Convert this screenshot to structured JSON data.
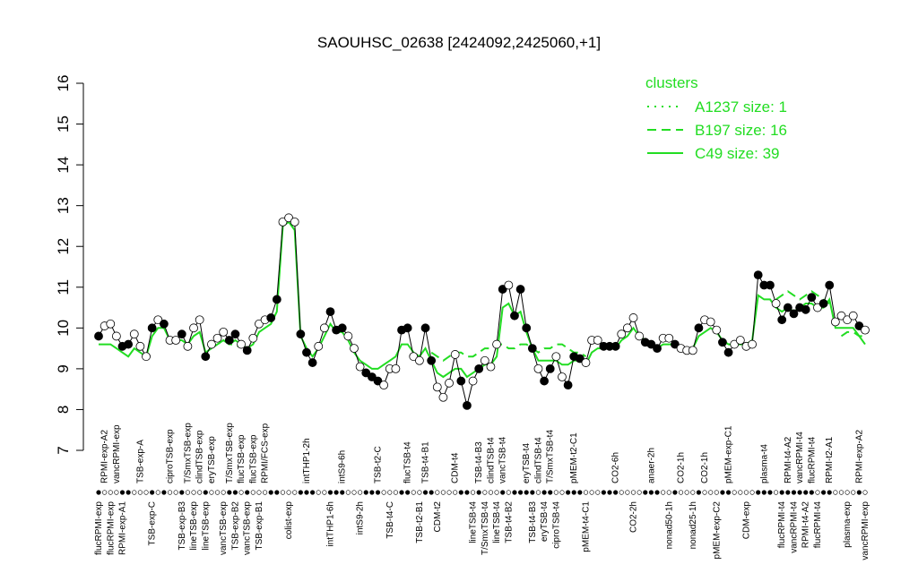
{
  "chart_data": {
    "type": "line",
    "title": "SAOUHSC_02638 [2424092,2425060,+1]",
    "categories": [
      "flucRPMI-exp",
      "RPMI-exp-A2",
      "flucRPMI-exp",
      "vancRPMI-exp",
      "RPMI-exp-A1",
      null,
      null,
      "TSB-exp-A",
      null,
      "TSB-exp-C",
      null,
      null,
      "ciproTSB-exp",
      null,
      "TSB-exp-B3",
      "T/SmxTSB-exp",
      "lineTSB-exp",
      "clindTSB-exp",
      "lineTSB-exp",
      "eryTSB-exp",
      null,
      "vancTSB-exp",
      "T/SmxTSB-exp",
      "TSB-exp-B2",
      "flucTSB-exp",
      "vancTSB-exp",
      "flucTSB-exp",
      "TSB-exp-B1",
      "RPMI/FCS-exp",
      null,
      null,
      null,
      "colist-exp",
      null,
      null,
      "intTHP1-2h",
      null,
      null,
      null,
      "intTHP1-6h",
      null,
      "intS9-6h",
      null,
      null,
      "intS9-2h",
      null,
      null,
      "TSB-t2-C",
      null,
      "TSB-t4-C",
      null,
      null,
      "flucTSB-t4",
      null,
      "TSB-t2-B1",
      "TSB-t4-B1",
      null,
      "CDM-t2",
      null,
      null,
      "CDM-t4",
      null,
      null,
      "lineTSB-t4",
      "TSB-t4-B3",
      "T/SmxTSB-t4",
      "clindTSB-t4",
      "lineTSB-t4",
      "vancTSB-t4",
      "TSB-t4-B2",
      null,
      null,
      "eryTSB-t4",
      "TSB-t4-B3",
      "clindTSB-t4",
      "eryTSB-t4",
      "T/SmxTSB-t4",
      "ciproTSB-t4",
      null,
      null,
      "pMEM-t2-C1",
      null,
      "pMEM-t4-C1",
      null,
      null,
      null,
      null,
      "CO2-6h",
      null,
      null,
      "CO2-2h",
      null,
      null,
      "anaer-2h",
      null,
      null,
      "nonad50-1h",
      null,
      "CO2-1h",
      null,
      "nonad25-1h",
      null,
      "CO2-1h",
      null,
      "pMEM-exp-C2",
      null,
      "pMEM-exp-C1",
      null,
      null,
      "CDM-exp",
      null,
      null,
      "plasma-t4",
      null,
      null,
      "flucRPMI-t4",
      "RPMI-t4-A2",
      "vancRPMI-t4",
      "vancRPMI-t4",
      "RPMI-t4-A2",
      "flucRPMI-t4",
      "flucRPMI-t4",
      null,
      "RPMI-t2-A1",
      null,
      null,
      "plasma-exp",
      null,
      "RPMI-exp-A2",
      "vancRPMI-exp"
    ],
    "values": [
      9.8,
      10.05,
      10.1,
      9.8,
      9.55,
      9.6,
      9.85,
      9.55,
      9.3,
      10.0,
      10.2,
      10.1,
      9.7,
      9.7,
      9.85,
      9.55,
      10.0,
      10.2,
      9.3,
      9.6,
      9.75,
      9.9,
      9.7,
      9.85,
      9.6,
      9.45,
      9.75,
      10.1,
      10.2,
      10.25,
      10.7,
      12.6,
      12.7,
      12.6,
      9.85,
      9.4,
      9.15,
      9.55,
      10.0,
      10.4,
      9.95,
      10.0,
      9.8,
      9.5,
      9.05,
      8.9,
      8.8,
      8.7,
      8.6,
      9.0,
      9.0,
      9.95,
      10.0,
      9.3,
      9.2,
      10.0,
      9.2,
      8.55,
      8.3,
      8.65,
      9.35,
      8.7,
      8.1,
      8.7,
      9.0,
      9.2,
      9.05,
      9.6,
      10.95,
      11.05,
      10.3,
      10.95,
      10.0,
      9.5,
      9.0,
      8.7,
      9.0,
      9.3,
      8.8,
      8.6,
      9.3,
      9.25,
      9.15,
      9.7,
      9.7,
      9.55,
      9.55,
      9.55,
      9.85,
      10.0,
      10.25,
      9.8,
      9.65,
      9.6,
      9.5,
      9.75,
      9.75,
      9.6,
      9.5,
      9.45,
      9.45,
      10.0,
      10.2,
      10.15,
      9.95,
      9.65,
      9.4,
      9.6,
      9.7,
      9.55,
      9.6,
      11.3,
      11.05,
      11.05,
      10.6,
      10.2,
      10.5,
      10.35,
      10.5,
      10.45,
      10.75,
      10.5,
      10.6,
      11.05,
      10.15,
      10.3,
      10.2,
      10.3,
      10.05,
      9.95
    ],
    "point_fills": [
      "#000",
      "#fff",
      "#fff",
      "#fff",
      "#000",
      "#000",
      "#fff",
      "#fff",
      "#fff",
      "#000",
      "#fff",
      "#000",
      "#fff",
      "#fff",
      "#000",
      "#fff",
      "#fff",
      "#fff",
      "#000",
      "#fff",
      "#fff",
      "#fff",
      "#000",
      "#000",
      "#fff",
      "#000",
      "#fff",
      "#fff",
      "#fff",
      "#000",
      "#000",
      "#fff",
      "#fff",
      "#fff",
      "#000",
      "#000",
      "#000",
      "#fff",
      "#fff",
      "#000",
      "#000",
      "#000",
      "#fff",
      "#fff",
      "#fff",
      "#000",
      "#000",
      "#000",
      "#fff",
      "#fff",
      "#fff",
      "#000",
      "#000",
      "#fff",
      "#fff",
      "#000",
      "#000",
      "#fff",
      "#fff",
      "#fff",
      "#fff",
      "#000",
      "#000",
      "#fff",
      "#000",
      "#fff",
      "#fff",
      "#fff",
      "#000",
      "#fff",
      "#000",
      "#000",
      "#000",
      "#000",
      "#fff",
      "#000",
      "#000",
      "#fff",
      "#fff",
      "#000",
      "#000",
      "#000",
      "#fff",
      "#fff",
      "#fff",
      "#000",
      "#000",
      "#000",
      "#fff",
      "#fff",
      "#fff",
      "#fff",
      "#000",
      "#000",
      "#000",
      "#fff",
      "#fff",
      "#000",
      "#fff",
      "#fff",
      "#fff",
      "#000",
      "#fff",
      "#fff",
      "#fff",
      "#000",
      "#000",
      "#fff",
      "#fff",
      "#fff",
      "#fff",
      "#000",
      "#000",
      "#000",
      "#fff",
      "#000",
      "#000",
      "#000",
      "#000",
      "#000",
      "#000",
      "#fff",
      "#000",
      "#000",
      "#fff",
      "#fff",
      "#fff",
      "#fff",
      "#000",
      "#fff"
    ],
    "line_color": "#000000",
    "ylim": [
      7,
      16
    ],
    "yticks": [
      7,
      8,
      9,
      10,
      11,
      12,
      13,
      14,
      15,
      16
    ],
    "legend_title": "clusters",
    "legend_color": "#22dd22",
    "series": [
      {
        "name": "A1237 size: 1",
        "color": "#22dd22",
        "dash": "dotted",
        "values": [
          null,
          null,
          null,
          null,
          null,
          null,
          null,
          null,
          null,
          null,
          null,
          null,
          null,
          null,
          null,
          null,
          null,
          null,
          null,
          9.6,
          9.6,
          9.7,
          9.6,
          9.6,
          9.5,
          null,
          null,
          null,
          null,
          null,
          null,
          null,
          null,
          null,
          null,
          null,
          null,
          null,
          null,
          null,
          null,
          null,
          null,
          null,
          null,
          null,
          null,
          null,
          null,
          null,
          null,
          null,
          null,
          null,
          null,
          null,
          null,
          null,
          null,
          null,
          null,
          null,
          null,
          null,
          null,
          null,
          null,
          null,
          null,
          null,
          null,
          null,
          null,
          null,
          null,
          null,
          null,
          null,
          null,
          null,
          null,
          null,
          null,
          null,
          null,
          null,
          null,
          null,
          null,
          null,
          null,
          null,
          null,
          null,
          null,
          null,
          null,
          null,
          null,
          null,
          null,
          null,
          null,
          null,
          null,
          null,
          null,
          null,
          null,
          null,
          null,
          null,
          null,
          null,
          null,
          null,
          null,
          null,
          null,
          null,
          null,
          null,
          null,
          null,
          null,
          null,
          null,
          null,
          null,
          null
        ]
      },
      {
        "name": "B197 size: 16",
        "color": "#22dd22",
        "dash": "dashed",
        "values": [
          null,
          null,
          null,
          null,
          null,
          null,
          null,
          null,
          null,
          null,
          null,
          null,
          null,
          null,
          null,
          null,
          null,
          null,
          null,
          null,
          null,
          null,
          null,
          null,
          null,
          null,
          null,
          null,
          null,
          null,
          null,
          null,
          null,
          null,
          null,
          null,
          null,
          null,
          null,
          null,
          null,
          null,
          null,
          null,
          null,
          null,
          null,
          null,
          null,
          null,
          null,
          null,
          null,
          null,
          null,
          null,
          9.4,
          9.3,
          9.2,
          9.3,
          9.4,
          9.4,
          9.3,
          9.3,
          9.4,
          9.5,
          9.5,
          9.6,
          9.6,
          9.5,
          9.5,
          9.6,
          9.6,
          9.5,
          9.4,
          9.5,
          9.5,
          9.6,
          9.6,
          9.5,
          9.4,
          9.4,
          9.3,
          null,
          null,
          null,
          null,
          null,
          null,
          null,
          null,
          null,
          null,
          null,
          null,
          null,
          null,
          null,
          null,
          null,
          null,
          null,
          null,
          null,
          null,
          null,
          null,
          null,
          null,
          null,
          null,
          null,
          null,
          null,
          10.7,
          10.8,
          10.9,
          10.8,
          10.7,
          10.8,
          10.9,
          10.8,
          10.7,
          10.6,
          null,
          9.8,
          9.9,
          9.9,
          9.8,
          9.8
        ]
      },
      {
        "name": "C49 size: 39",
        "color": "#22dd22",
        "dash": "solid",
        "values": [
          9.6,
          9.6,
          9.6,
          9.5,
          9.4,
          9.3,
          9.5,
          9.4,
          9.3,
          9.8,
          10.0,
          10.0,
          9.7,
          9.7,
          9.7,
          9.6,
          9.8,
          9.9,
          9.4,
          9.5,
          9.6,
          9.7,
          9.6,
          9.7,
          9.6,
          9.5,
          9.6,
          9.9,
          10.0,
          10.1,
          10.4,
          12.5,
          12.6,
          12.4,
          9.8,
          9.5,
          9.3,
          9.5,
          9.8,
          10.1,
          9.9,
          9.9,
          9.7,
          9.4,
          9.2,
          9.1,
          9.0,
          9.0,
          9.1,
          9.2,
          9.3,
          9.6,
          9.6,
          9.4,
          9.3,
          9.5,
          9.2,
          8.9,
          8.8,
          8.9,
          9.0,
          9.0,
          8.8,
          8.9,
          9.0,
          9.1,
          9.1,
          9.3,
          10.5,
          10.6,
          10.3,
          10.4,
          9.9,
          9.5,
          9.2,
          9.2,
          9.2,
          9.2,
          9.1,
          9.1,
          9.2,
          9.2,
          9.1,
          9.4,
          9.5,
          9.5,
          9.5,
          9.5,
          9.7,
          9.8,
          10.0,
          9.8,
          9.7,
          9.6,
          9.5,
          9.6,
          9.6,
          9.6,
          9.5,
          9.5,
          9.5,
          9.8,
          9.9,
          10.0,
          9.9,
          9.7,
          9.6,
          9.6,
          9.6,
          9.6,
          9.7,
          10.8,
          10.7,
          10.7,
          10.5,
          10.4,
          10.5,
          10.4,
          10.5,
          10.6,
          10.6,
          10.5,
          10.5,
          10.7,
          10.0,
          10.0,
          10.0,
          10.0,
          9.8,
          9.6
        ]
      }
    ]
  }
}
